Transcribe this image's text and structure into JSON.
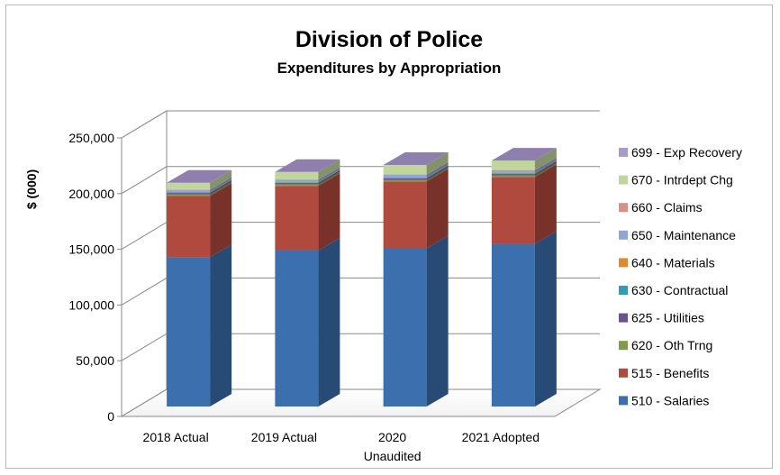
{
  "chart_data": {
    "type": "bar",
    "stacked": true,
    "title": "Division of Police",
    "subtitle": "Expenditures by Appropriation",
    "ylabel": "$ (000)",
    "xlabel": "",
    "ylim": [
      0,
      250000
    ],
    "yticks": [
      0,
      50000,
      100000,
      150000,
      200000,
      250000
    ],
    "ytick_labels": [
      "0",
      "50,000",
      "100,000",
      "150,000",
      "200,000",
      "250,000"
    ],
    "categories": [
      {
        "label": "2018 Actual",
        "label2": ""
      },
      {
        "label": "2019 Actual",
        "label2": ""
      },
      {
        "label": "2020",
        "label2": "Unaudited"
      },
      {
        "label": "2021 Adopted",
        "label2": ""
      }
    ],
    "grid": true,
    "legend_position": "right",
    "series": [
      {
        "name": "510 - Salaries",
        "color": "#3b6fae",
        "values": [
          134000,
          140000,
          142000,
          146000
        ]
      },
      {
        "name": "515 - Benefits",
        "color": "#b04a3e",
        "values": [
          55000,
          58000,
          60000,
          60000
        ]
      },
      {
        "name": "620 - Oth Trng",
        "color": "#7e9b45",
        "values": [
          1500,
          1500,
          1500,
          1500
        ]
      },
      {
        "name": "625 - Utilities",
        "color": "#6b4f8e",
        "values": [
          1200,
          1200,
          1200,
          1200
        ]
      },
      {
        "name": "630 - Contractual",
        "color": "#2e9bb8",
        "values": [
          500,
          500,
          500,
          500
        ]
      },
      {
        "name": "640 - Materials",
        "color": "#e08a2c",
        "values": [
          300,
          300,
          300,
          300
        ]
      },
      {
        "name": "650 - Maintenance",
        "color": "#8ea6d4",
        "values": [
          2000,
          2000,
          2500,
          2500
        ]
      },
      {
        "name": "660 - Claims",
        "color": "#d98f8a",
        "values": [
          300,
          300,
          300,
          300
        ]
      },
      {
        "name": "670 - Intrdept Chg",
        "color": "#c0d69a",
        "values": [
          6000,
          6800,
          8500,
          8500
        ]
      },
      {
        "name": "699 - Exp Recovery",
        "color": "#a89bc6",
        "values": [
          0,
          0,
          0,
          0
        ]
      }
    ]
  }
}
